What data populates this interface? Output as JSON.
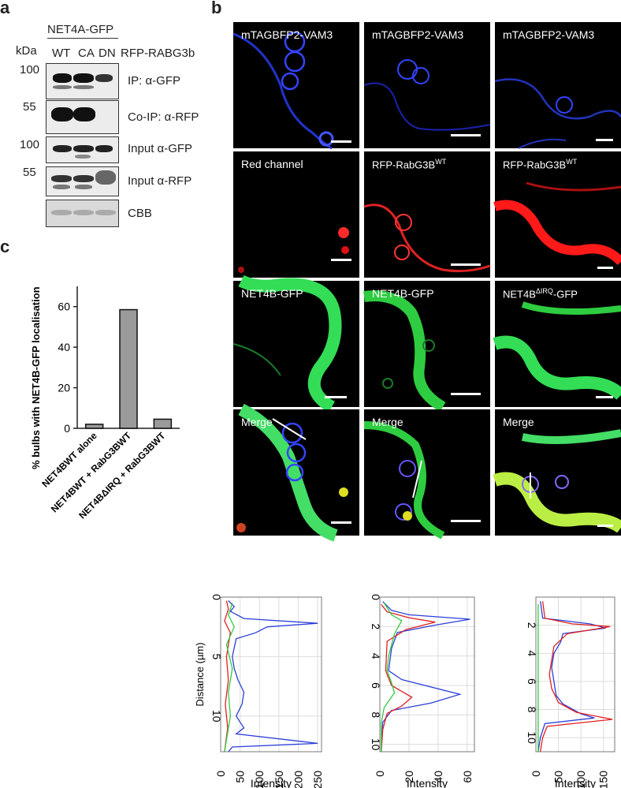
{
  "panel_a": {
    "letter": "a",
    "construct": "NET4A-GFP",
    "kda_label": "kDa",
    "lanes": [
      "WT",
      "CA",
      "DN"
    ],
    "rfp_label": "RFP-RABG3b",
    "blots": [
      {
        "mw": "100",
        "label": "IP: α-GFP"
      },
      {
        "mw": "55",
        "label": "Co-IP: α-RFP"
      },
      {
        "mw": "100",
        "label": "Input α-GFP"
      },
      {
        "mw": "55",
        "label": "Input α-RFP"
      },
      {
        "mw": "",
        "label": "CBB"
      }
    ]
  },
  "panel_b": {
    "letter": "b",
    "rows": [
      [
        "mTAGBFP2-VAM3",
        "mTAGBFP2-VAM3",
        "mTAGBFP2-VAM3"
      ],
      [
        "Red channel",
        "RFP-RabG3B",
        "RFP-RabG3B"
      ],
      [
        "NET4B-GFP",
        "NET4B-GFP",
        "NET4B"
      ],
      [
        "Merge",
        "Merge",
        "Merge"
      ]
    ],
    "sup_wt": "WT",
    "sup_dirq": "ΔIRQ",
    "suffix_gfp": "-GFP"
  },
  "panel_c": {
    "letter": "c",
    "chart_data": {
      "type": "bar",
      "ylabel": "% bulbs with NET4B-GFP localisation",
      "categories": [
        "NET4BWT alone",
        "NET4BWT + RabG3BWT",
        "NET4BΔIRQ + RabG3BWT"
      ],
      "values": [
        2,
        58.5,
        4.5
      ],
      "ylim": [
        0,
        70
      ],
      "yticks": [
        "0",
        "20",
        "40",
        "60"
      ],
      "bar_color": "#9a9a9a"
    }
  },
  "line_profiles": {
    "chart_data": [
      {
        "type": "line",
        "ylabel": "Distance (µm)",
        "xlabel": "Intensity",
        "xlim": [
          0,
          260
        ],
        "ylim": [
          0,
          13
        ],
        "xticks": [
          "0",
          "50",
          "100",
          "150",
          "200",
          "250"
        ],
        "yticks": [
          "0",
          "5",
          "10"
        ],
        "series": [
          {
            "color": "#2c3fd8",
            "points": [
              [
                20,
                0.3
              ],
              [
                35,
                0.8
              ],
              [
                25,
                1.2
              ],
              [
                60,
                1.8
              ],
              [
                250,
                2.2
              ],
              [
                120,
                2.5
              ],
              [
                90,
                3.0
              ],
              [
                40,
                3.5
              ],
              [
                30,
                5
              ],
              [
                35,
                6
              ],
              [
                45,
                7
              ],
              [
                60,
                8
              ],
              [
                55,
                9
              ],
              [
                40,
                10
              ],
              [
                60,
                11
              ],
              [
                40,
                11.5
              ],
              [
                250,
                12.3
              ],
              [
                30,
                12.6
              ],
              [
                20,
                13
              ]
            ]
          },
          {
            "color": "#e02020",
            "points": [
              [
                15,
                0.3
              ],
              [
                20,
                1
              ],
              [
                10,
                2
              ],
              [
                25,
                3
              ],
              [
                15,
                5
              ],
              [
                20,
                7
              ],
              [
                12,
                9
              ],
              [
                18,
                11
              ],
              [
                10,
                13
              ]
            ]
          },
          {
            "color": "#2ecc40",
            "points": [
              [
                30,
                0.5
              ],
              [
                20,
                1.5
              ],
              [
                35,
                2.5
              ],
              [
                15,
                4
              ],
              [
                30,
                6
              ],
              [
                20,
                8
              ],
              [
                25,
                10
              ],
              [
                15,
                12
              ],
              [
                10,
                13
              ]
            ]
          }
        ]
      },
      {
        "type": "line",
        "xlabel": "Intensity",
        "xlim": [
          0,
          65
        ],
        "ylim": [
          0,
          10.5
        ],
        "xticks": [
          "0",
          "20",
          "40",
          "60"
        ],
        "yticks": [
          "0",
          "2",
          "4",
          "6",
          "8",
          "10"
        ],
        "series": [
          {
            "color": "#2c3fd8",
            "points": [
              [
                2,
                0.3
              ],
              [
                8,
                0.9
              ],
              [
                20,
                1.2
              ],
              [
                62,
                1.5
              ],
              [
                38,
                1.9
              ],
              [
                12,
                2.4
              ],
              [
                8,
                3.5
              ],
              [
                6,
                5
              ],
              [
                15,
                5.6
              ],
              [
                55,
                6.6
              ],
              [
                35,
                7.2
              ],
              [
                8,
                7.7
              ],
              [
                2,
                8.5
              ],
              [
                1,
                10.5
              ]
            ]
          },
          {
            "color": "#e02020",
            "points": [
              [
                1,
                0.5
              ],
              [
                5,
                1
              ],
              [
                20,
                1.4
              ],
              [
                38,
                1.7
              ],
              [
                18,
                2.2
              ],
              [
                5,
                3
              ],
              [
                4,
                5
              ],
              [
                8,
                6
              ],
              [
                22,
                6.8
              ],
              [
                15,
                7.4
              ],
              [
                5,
                7.9
              ],
              [
                2,
                9
              ],
              [
                1,
                10.5
              ]
            ]
          },
          {
            "color": "#2ecc40",
            "points": [
              [
                3,
                0.4
              ],
              [
                8,
                1.2
              ],
              [
                15,
                1.6
              ],
              [
                10,
                2.5
              ],
              [
                6,
                4
              ],
              [
                5,
                5
              ],
              [
                8,
                5.8
              ],
              [
                10,
                6.5
              ],
              [
                3,
                7.5
              ],
              [
                1,
                8.5
              ],
              [
                1,
                10.5
              ]
            ]
          }
        ]
      },
      {
        "type": "line",
        "xlabel": "Intensity",
        "xlim": [
          0,
          175
        ],
        "ylim": [
          0,
          11
        ],
        "xticks": [
          "0",
          "50",
          "100",
          "150"
        ],
        "yticks": [
          "2",
          "4",
          "6",
          "8",
          "10"
        ],
        "series": [
          {
            "color": "#2c3fd8",
            "points": [
              [
                10,
                0.3
              ],
              [
                15,
                1.5
              ],
              [
                120,
                1.9
              ],
              [
                155,
                2.2
              ],
              [
                60,
                2.6
              ],
              [
                55,
                3.2
              ],
              [
                40,
                4
              ],
              [
                35,
                5
              ],
              [
                40,
                6
              ],
              [
                45,
                7
              ],
              [
                60,
                7.6
              ],
              [
                100,
                8.3
              ],
              [
                130,
                8.6
              ],
              [
                20,
                9
              ],
              [
                10,
                10
              ],
              [
                5,
                11
              ]
            ]
          },
          {
            "color": "#e02020",
            "points": [
              [
                15,
                0.3
              ],
              [
                20,
                1.5
              ],
              [
                80,
                1.9
              ],
              [
                165,
                2.1
              ],
              [
                70,
                2.6
              ],
              [
                40,
                3.5
              ],
              [
                35,
                4.5
              ],
              [
                30,
                5.5
              ],
              [
                35,
                6.5
              ],
              [
                50,
                7.5
              ],
              [
                90,
                8.2
              ],
              [
                170,
                8.7
              ],
              [
                25,
                9.2
              ],
              [
                15,
                10
              ],
              [
                10,
                11
              ]
            ]
          },
          {
            "color": "#2ecc40",
            "points": [
              [
                5,
                0.5
              ],
              [
                5,
                3
              ],
              [
                5,
                6
              ],
              [
                5,
                9
              ],
              [
                5,
                11
              ]
            ]
          }
        ]
      }
    ]
  }
}
